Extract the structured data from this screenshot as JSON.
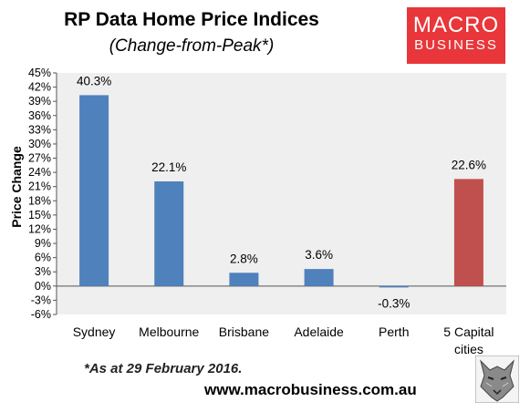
{
  "header": {
    "title": "RP Data Home Price Indices",
    "subtitle": "(Change-from-Peak*)"
  },
  "logo": {
    "line1": "MACRO",
    "line2": "BUSINESS"
  },
  "footer": {
    "footnote": "*As at 29 February 2016.",
    "url": "www.macrobusiness.com.au"
  },
  "colors": {
    "bar": "#4f81bd",
    "highlight_bar": "#c0504d",
    "plot_bg": "#efefef",
    "logo_bg": "#e8363a"
  },
  "chart_data": {
    "type": "bar",
    "title": "RP Data Home Price Indices",
    "subtitle": "(Change-from-Peak*)",
    "xlabel": "",
    "ylabel": "Price Change",
    "categories": [
      "Sydney",
      "Melbourne",
      "Brisbane",
      "Adelaide",
      "Perth",
      "5 Capital cities"
    ],
    "values": [
      40.3,
      22.1,
      2.8,
      3.6,
      -0.3,
      22.6
    ],
    "data_labels": [
      "40.3%",
      "22.1%",
      "2.8%",
      "3.6%",
      "-0.3%",
      "22.6%"
    ],
    "highlight_index": 5,
    "ylim": [
      -6,
      45
    ],
    "yticks": [
      -6,
      -3,
      0,
      3,
      6,
      9,
      12,
      15,
      18,
      21,
      24,
      27,
      30,
      33,
      36,
      39,
      42,
      45
    ],
    "ytick_labels": [
      "-6%",
      "-3%",
      "0%",
      "3%",
      "6%",
      "9%",
      "12%",
      "15%",
      "18%",
      "21%",
      "24%",
      "27%",
      "30%",
      "33%",
      "36%",
      "39%",
      "42%",
      "45%"
    ],
    "grid": false,
    "legend": "none"
  }
}
